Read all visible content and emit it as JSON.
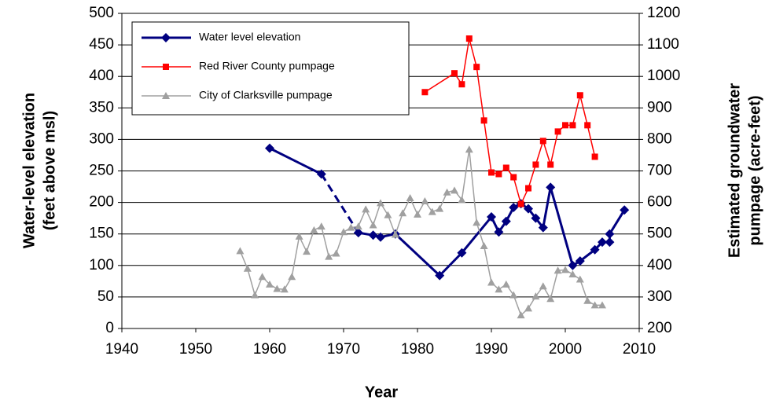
{
  "chart_data": {
    "type": "line",
    "x_label": "Year",
    "y_label": [
      "Water-level elevation",
      "(feet above msl)"
    ],
    "y2_label": [
      "Estimated groundwater",
      "pumpage (acre-feet)"
    ],
    "xlim": [
      1940,
      2010
    ],
    "xticks": [
      1940,
      1950,
      1960,
      1970,
      1980,
      1990,
      2000,
      2010
    ],
    "ylim": [
      0,
      500
    ],
    "yticks": [
      0,
      50,
      100,
      150,
      200,
      250,
      300,
      350,
      400,
      450,
      500
    ],
    "y2lim": [
      200,
      1200
    ],
    "y2ticks": [
      200,
      300,
      400,
      500,
      600,
      700,
      800,
      900,
      1000,
      1100,
      1200
    ],
    "grid": true,
    "legend": "upper-left",
    "series": [
      {
        "name": "Water level elevation",
        "color": "#000080",
        "marker": "diamond",
        "axis": "y",
        "dashed_segments": [
          1
        ],
        "x": [
          1960,
          1967,
          1972,
          1974,
          1975,
          1977,
          1983,
          1986,
          1990,
          1991,
          1992,
          1993,
          1994,
          1995,
          1996,
          1997,
          1998,
          2001,
          2002,
          2004,
          2005,
          2006,
          2006,
          2008
        ],
        "values": [
          286,
          245,
          152,
          148,
          145,
          150,
          84,
          120,
          177,
          153,
          170,
          192,
          198,
          190,
          175,
          160,
          224,
          100,
          107,
          125,
          137,
          137,
          150,
          188
        ]
      },
      {
        "name": "Red River County pumpage",
        "color": "#ff0000",
        "marker": "square",
        "axis": "y2",
        "x": [
          1981,
          1985,
          1986,
          1987,
          1988,
          1989,
          1990,
          1991,
          1992,
          1993,
          1994,
          1995,
          1996,
          1997,
          1998,
          1999,
          2000,
          2001,
          2002,
          2003,
          2004
        ],
        "values": [
          950,
          1010,
          975,
          1120,
          1030,
          860,
          695,
          690,
          710,
          680,
          595,
          645,
          720,
          795,
          720,
          825,
          845,
          845,
          940,
          845,
          745
        ]
      },
      {
        "name": "City of Clarksville pumpage",
        "color": "#a0a0a0",
        "marker": "triangle",
        "axis": "y2",
        "x": [
          1956,
          1957,
          1958,
          1959,
          1960,
          1961,
          1962,
          1963,
          1964,
          1965,
          1966,
          1967,
          1968,
          1969,
          1970,
          1971,
          1972,
          1973,
          1974,
          1975,
          1976,
          1977,
          1978,
          1979,
          1980,
          1981,
          1982,
          1983,
          1984,
          1985,
          1986,
          1987,
          1988,
          1989,
          1990,
          1991,
          1992,
          1993,
          1994,
          1995,
          1996,
          1997,
          1998,
          1999,
          2000,
          2001,
          2002,
          2003,
          2004,
          2005
        ],
        "values": [
          446,
          390,
          306,
          364,
          340,
          326,
          324,
          364,
          492,
          444,
          512,
          524,
          428,
          438,
          506,
          520,
          524,
          578,
          528,
          598,
          560,
          498,
          566,
          614,
          562,
          604,
          570,
          580,
          632,
          638,
          608,
          768,
          536,
          462,
          346,
          324,
          340,
          306,
          242,
          264,
          302,
          334,
          294,
          384,
          386,
          372,
          356,
          288,
          274,
          274
        ]
      }
    ]
  }
}
